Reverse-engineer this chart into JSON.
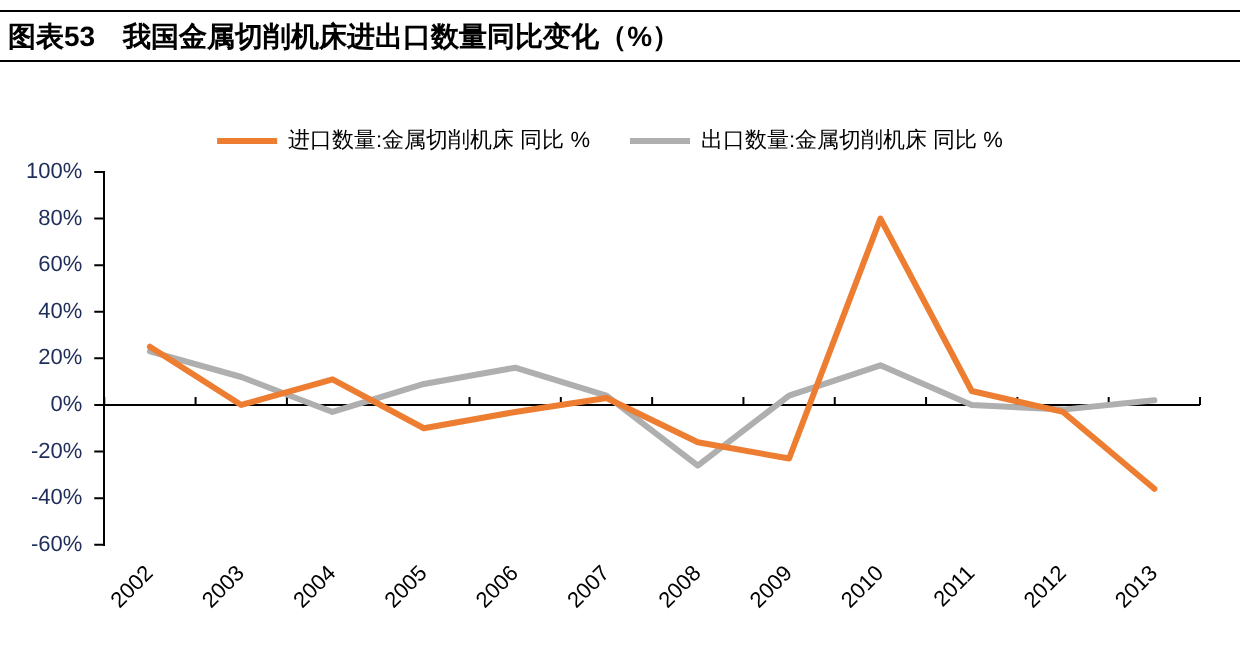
{
  "chart_data": {
    "type": "line",
    "title": "图表53　我国金属切削机床进出口数量同比变化（%）",
    "categories": [
      "2002",
      "2003",
      "2004",
      "2005",
      "2006",
      "2007",
      "2008",
      "2009",
      "2010",
      "2011",
      "2012",
      "2013"
    ],
    "series": [
      {
        "name": "进口数量:金属切削机床 同比 %",
        "color": "#ed7d31",
        "values": [
          25,
          0,
          11,
          -10,
          -3,
          3,
          -16,
          -23,
          80,
          6,
          -3,
          -36
        ]
      },
      {
        "name": "出口数量:金属切削机床 同比 %",
        "color": "#afafaf",
        "values": [
          23,
          12,
          -3,
          9,
          16,
          4,
          -26,
          4,
          17,
          0,
          -2,
          2
        ]
      }
    ],
    "ylim": [
      -60,
      100
    ],
    "yticks": [
      {
        "value": -60,
        "label": "-60%"
      },
      {
        "value": -40,
        "label": "-40%"
      },
      {
        "value": -20,
        "label": "-20%"
      },
      {
        "value": 0,
        "label": "0%"
      },
      {
        "value": 20,
        "label": "20%"
      },
      {
        "value": 40,
        "label": "40%"
      },
      {
        "value": 60,
        "label": "60%"
      },
      {
        "value": 80,
        "label": "80%"
      },
      {
        "value": 100,
        "label": "100%"
      }
    ],
    "ref_lines": [
      {
        "axis": "y",
        "value": 0,
        "color": "#000000"
      }
    ],
    "grid": false,
    "legend": "top",
    "marker": "none",
    "line_style": "solid"
  }
}
